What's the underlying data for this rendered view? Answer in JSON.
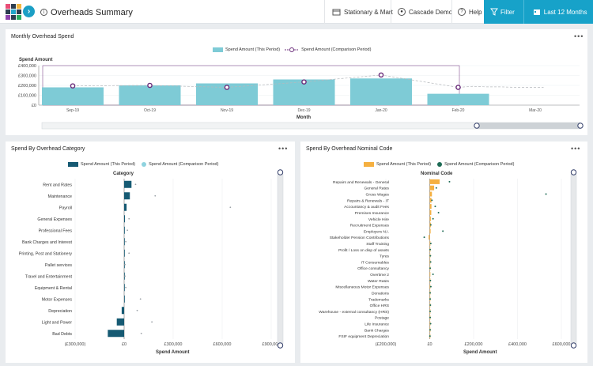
{
  "header": {
    "title": "Overheads Summary",
    "company": "Stationary & Mart",
    "user": "Cascade Demo",
    "help": "Help",
    "filter": "Filter",
    "period": "Last 12 Months"
  },
  "colors": {
    "accent": "#17a2c9",
    "bar_this": "#7ecbd6",
    "line_comp": "#6a2c7a",
    "bar_navy": "#165a73",
    "bar_orange": "#f5b041",
    "dot_green": "#1e6b55",
    "dot_grey": "#9aa0a6"
  },
  "monthly": {
    "title": "Monthly Overhead Spend",
    "legend_this": "Spend Amount (This Period)",
    "legend_comp": "Spend Amount (Comparison Period)",
    "ylabel": "Spend Amount",
    "xlabel": "Month"
  },
  "category": {
    "title": "Spend By Overhead Category",
    "legend_this": "Spend Amount (This Period)",
    "legend_comp": "Spend Amount (Comparison Period)",
    "axis_title": "Category",
    "xlabel": "Spend Amount"
  },
  "nominal": {
    "title": "Spend By Overhead Nominal Code",
    "legend_this": "Spend Amount (This Period)",
    "legend_comp": "Spend Amount (Comparison Period)",
    "axis_title": "Nominal Code",
    "xlabel": "Spend Amount"
  },
  "chart_data": [
    {
      "type": "bar",
      "title": "Monthly Overhead Spend",
      "xlabel": "Month",
      "ylabel": "Spend Amount",
      "ylim": [
        0,
        400000
      ],
      "yticks": [
        "£0",
        "£100,000",
        "£200,000",
        "£300,000",
        "£400,000"
      ],
      "categories": [
        "Sep-19",
        "Oct-19",
        "Nov-19",
        "Dec-19",
        "Jan-20",
        "Feb-20"
      ],
      "visible_tick_labels": [
        "Sep-19",
        "Oct-19",
        "Nov-19",
        "Dec-19",
        "Jan-20",
        "Feb-20",
        "Mar-20"
      ],
      "series": [
        {
          "name": "Spend Amount (This Period)",
          "values": [
            180000,
            200000,
            220000,
            260000,
            270000,
            115000
          ]
        },
        {
          "name": "Spend Amount (Comparison Period)",
          "values": [
            195000,
            200000,
            180000,
            235000,
            305000,
            180000
          ]
        }
      ],
      "comparison_trailing_values": [
        190000,
        185000,
        185000,
        180000,
        180000,
        180000
      ]
    },
    {
      "type": "bar",
      "orientation": "horizontal",
      "title": "Spend By Overhead Category",
      "xlabel": "Spend Amount",
      "ylabel": "Category",
      "xlim": [
        -300000,
        900000
      ],
      "xticks": [
        "(£300,000)",
        "£0",
        "£300,000",
        "£600,000",
        "£900,000"
      ],
      "categories": [
        "Rent and Rates",
        "Maintenance",
        "Payroll",
        "General Expenses",
        "Professional Fees",
        "Bank Charges and Interest",
        "Printing, Post and Stationery",
        "Pallet services",
        "Travel and Entertainment",
        "Equipment & Rental",
        "Motor Expenses",
        "Depreciation",
        "Light and Power",
        "Bad Debts"
      ],
      "series": [
        {
          "name": "Spend Amount (This Period)",
          "values": [
            45000,
            35000,
            15000,
            5000,
            4000,
            3000,
            3000,
            2000,
            2000,
            2000,
            4000,
            -15000,
            -45000,
            -100000
          ]
        },
        {
          "name": "Spend Amount (Comparison Period)",
          "values": [
            70000,
            190000,
            650000,
            30000,
            20000,
            10000,
            30000,
            5000,
            5000,
            10000,
            100000,
            80000,
            170000,
            105000
          ]
        }
      ]
    },
    {
      "type": "bar",
      "orientation": "horizontal",
      "title": "Spend By Overhead Nominal Code",
      "xlabel": "Spend Amount",
      "ylabel": "Nominal Code",
      "xlim": [
        -200000,
        600000
      ],
      "xticks": [
        "(£200,000)",
        "£0",
        "£200,000",
        "£400,000",
        "£600,000"
      ],
      "categories": [
        "Repairs and Renewals - General",
        "General Rates",
        "Gross Wages",
        "Repairs & Renewals - IT",
        "Accountancy & audit Fees",
        "Premises Insurance",
        "Vehicle Hire",
        "Recruitment Expenses",
        "Employers N.I.",
        "Stakeholder Pension Contributions",
        "Staff Training",
        "Profit / Loss on disp of assets",
        "Tyres",
        "IT Consumables",
        "Office consultancy",
        "Overtime 2",
        "Water Rates",
        "Miscellaneous Motor Expenses",
        "Donations",
        "Trademarks",
        "Office HRS",
        "Warehouse - external consultancy (HRS)",
        "Postage",
        "Life Insurance",
        "Bank Charges",
        "FSIF equipment Depreciation"
      ],
      "series": [
        {
          "name": "Spend Amount (This Period)",
          "values": [
            45000,
            20000,
            10000,
            8000,
            8000,
            7000,
            5000,
            5000,
            4000,
            -5000,
            3000,
            2000,
            2000,
            2000,
            1500,
            1500,
            1500,
            1000,
            1000,
            1000,
            1000,
            1000,
            800,
            800,
            500,
            500
          ]
        },
        {
          "name": "Spend Amount (Comparison Period)",
          "values": [
            90000,
            30000,
            530000,
            10000,
            25000,
            40000,
            15000,
            5000,
            60000,
            -25000,
            5000,
            2000,
            3000,
            4000,
            2000,
            15000,
            3000,
            5000,
            2000,
            2000,
            3000,
            2000,
            2000,
            4000,
            2000,
            1000
          ]
        }
      ]
    }
  ]
}
